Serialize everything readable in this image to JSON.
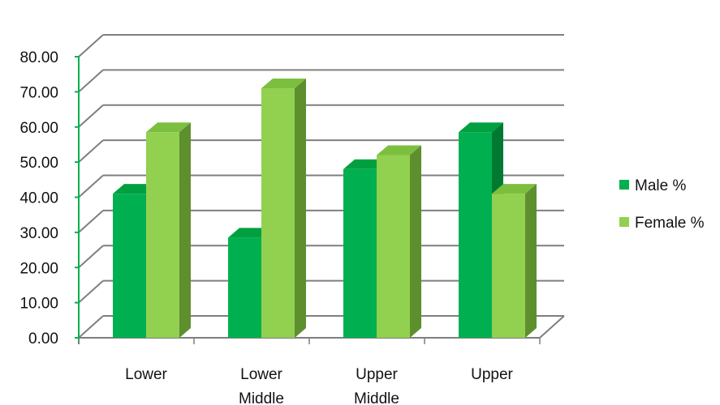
{
  "chart_data": {
    "type": "bar",
    "categories": [
      [
        "Lower"
      ],
      [
        "Lower",
        "Middle"
      ],
      [
        "Upper",
        "Middle"
      ],
      [
        "Upper"
      ]
    ],
    "series": [
      {
        "name": "Male %",
        "values": [
          41.0,
          28.5,
          48.0,
          58.5
        ],
        "color": "#00b050",
        "top_color": "#00a040",
        "side_color": "#007a30"
      },
      {
        "name": "Female %",
        "values": [
          58.5,
          71.0,
          52.0,
          41.0
        ],
        "color": "#92d050",
        "top_color": "#7cbf3e",
        "side_color": "#5e8f2e"
      }
    ],
    "ylim": [
      0,
      80
    ],
    "y_ticks": [
      "0.00",
      "10.00",
      "20.00",
      "30.00",
      "40.00",
      "50.00",
      "60.00",
      "70.00",
      "80.00"
    ],
    "y_step": 10,
    "grid": true,
    "legend_position": "right",
    "axis_color": "#00b050",
    "grid_color": "#7f7f7f"
  }
}
